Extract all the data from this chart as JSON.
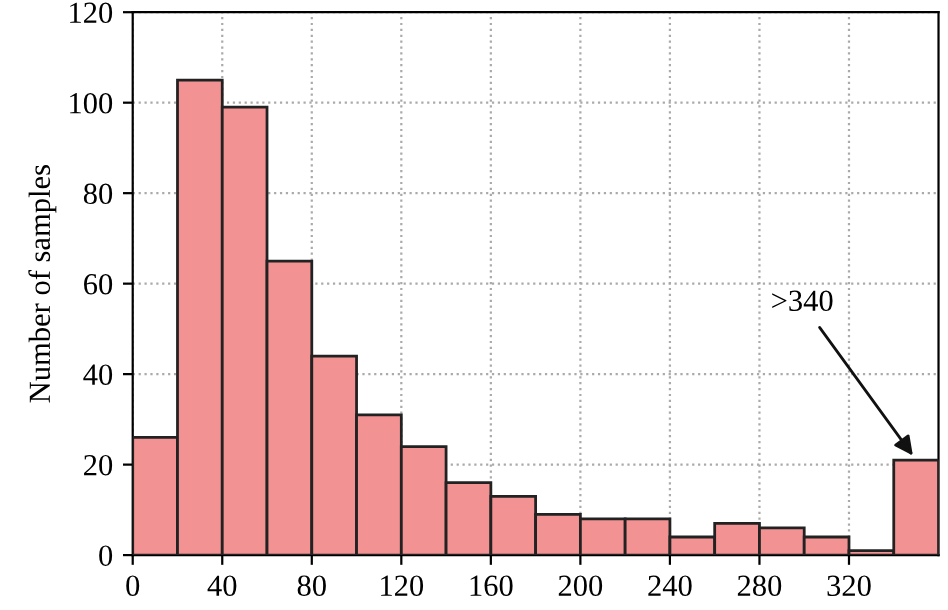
{
  "chart_data": {
    "type": "histogram",
    "ylabel": "Number of samples",
    "bins": [
      0,
      20,
      40,
      60,
      80,
      100,
      120,
      140,
      160,
      180,
      200,
      220,
      240,
      260,
      280,
      300,
      320,
      340,
      360
    ],
    "values": [
      26,
      105,
      99,
      65,
      44,
      31,
      24,
      16,
      13,
      9,
      8,
      8,
      4,
      7,
      6,
      4,
      1,
      21
    ],
    "color": "#f29292",
    "xlim": [
      0,
      360
    ],
    "xticks": [
      0,
      40,
      80,
      120,
      160,
      200,
      240,
      280,
      320
    ],
    "ylim": [
      0,
      120
    ],
    "yticks": [
      0,
      20,
      40,
      60,
      80,
      100,
      120
    ],
    "grid": true,
    "line_style": "dotted",
    "annotations": [
      {
        "text": ">340",
        "x": 350,
        "y": 21
      }
    ]
  }
}
